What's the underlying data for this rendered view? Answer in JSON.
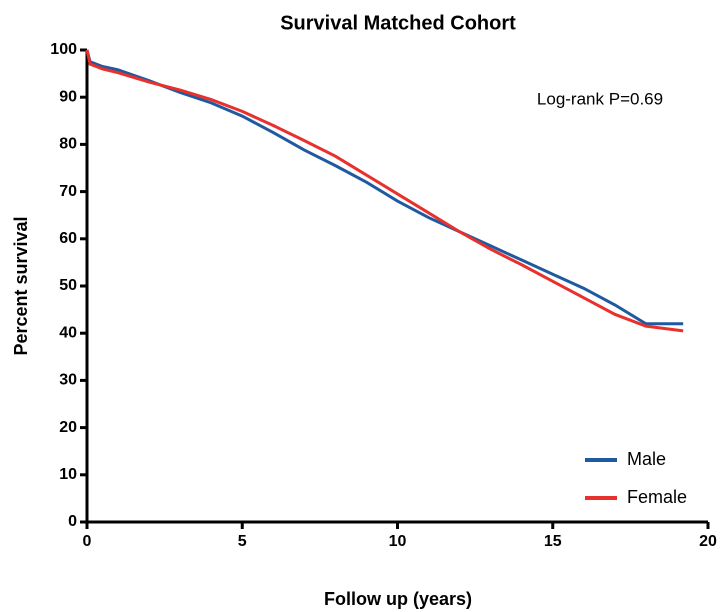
{
  "chart_data": {
    "type": "line",
    "title": "Survival Matched Cohort",
    "annotation": "Log-rank P=0.69",
    "x_label": "Follow up (years)",
    "y_label": "Percent survival",
    "x": [
      0,
      0.1,
      0.5,
      1,
      2,
      3,
      4,
      5,
      6,
      7,
      8,
      9,
      10,
      11,
      12,
      13,
      14,
      15,
      16,
      17,
      18,
      19.2
    ],
    "series": [
      {
        "name": "Male",
        "color": "#1f5aa0",
        "values": [
          100,
          97.5,
          96.5,
          95.8,
          93.5,
          91,
          88.8,
          86,
          82.5,
          78.8,
          75.5,
          72,
          68,
          64.5,
          61.5,
          58.5,
          55.5,
          52.5,
          49.5,
          46,
          42,
          42
        ]
      },
      {
        "name": "Female",
        "color": "#e8302c",
        "values": [
          100,
          97,
          96,
          95.2,
          93.2,
          91.5,
          89.5,
          87,
          84,
          80.8,
          77.5,
          73.5,
          69.5,
          65.5,
          61.5,
          57.8,
          54.5,
          51,
          47.5,
          44,
          41.5,
          40.5
        ]
      }
    ],
    "xlim": [
      0,
      20
    ],
    "xticks": [
      0,
      5,
      10,
      15,
      20
    ],
    "ylim": [
      0,
      100
    ],
    "yticks": [
      0,
      10,
      20,
      30,
      40,
      50,
      60,
      70,
      80,
      90,
      100
    ],
    "legend": "lower right",
    "grid": false
  }
}
